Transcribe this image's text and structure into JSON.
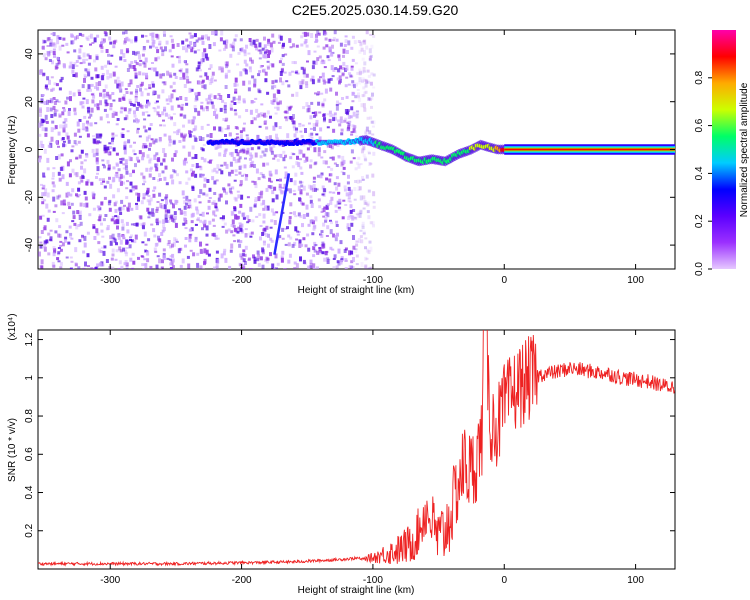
{
  "title": "C2E5.2025.030.14.59.G20",
  "chart_data": [
    {
      "type": "heatmap",
      "title": "",
      "xlabel": "Height of straight line (km)",
      "ylabel": "Frequency (Hz)",
      "xlim": [
        -355,
        130
      ],
      "ylim": [
        -50,
        50
      ],
      "xticks": [
        -300,
        -200,
        -100,
        0,
        100
      ],
      "yticks": [
        -40,
        -20,
        0,
        20,
        40
      ],
      "colorbar": {
        "label": "Normalized spectral amplitude",
        "range": [
          0,
          1
        ],
        "ticks": [
          "0.0",
          "0.2",
          "0.4",
          "0.6",
          "0.8"
        ],
        "colors": [
          "#e6c8ff",
          "#9b30ff",
          "#5b00ff",
          "#0000ff",
          "#00ccff",
          "#00ff66",
          "#ccff00",
          "#ffaa00",
          "#ff0000",
          "#ff00aa"
        ]
      },
      "noise_region_x": [
        -355,
        -100
      ],
      "signal_ridge": {
        "x": [
          -225,
          -200,
          -150,
          -120,
          -105,
          -95,
          -85,
          -75,
          -65,
          -55,
          -45,
          -35,
          -25,
          -18,
          -12,
          -5,
          0,
          130
        ],
        "freq_hz": [
          3,
          3,
          3,
          3,
          4,
          2,
          0,
          -3,
          -5,
          -4,
          -5,
          -2,
          0,
          2,
          1,
          0,
          0,
          0
        ],
        "amplitude": [
          0.35,
          0.38,
          0.38,
          0.42,
          0.45,
          0.52,
          0.55,
          0.55,
          0.58,
          0.6,
          0.6,
          0.55,
          0.62,
          0.62,
          0.65,
          0.75,
          0.9,
          0.9
        ]
      },
      "meteor_streak": {
        "x": [
          -175,
          -164
        ],
        "freq_hz": [
          -44,
          -10
        ]
      }
    },
    {
      "type": "line",
      "title": "",
      "xlabel": "Height of straight line (km)",
      "ylabel": "SNR (10 * v/v)",
      "y_multiplier": "(x10⁴)",
      "xlim": [
        -355,
        130
      ],
      "ylim": [
        0,
        1.25
      ],
      "xticks": [
        -300,
        -200,
        -100,
        0,
        100
      ],
      "yticks": [
        0.2,
        0.4,
        0.6,
        0.8,
        1.0,
        1.2
      ],
      "color": "#ee2222",
      "series": [
        {
          "x": [
            -355,
            -300,
            -250,
            -200,
            -160,
            -130,
            -110,
            -100,
            -90,
            -80,
            -70,
            -65,
            -60,
            -55,
            -50,
            -45,
            -40,
            -35,
            -30,
            -25,
            -20,
            -17,
            -15,
            -10,
            -5,
            0,
            5,
            10,
            20,
            30,
            40,
            50,
            60,
            70,
            80,
            90,
            100,
            110,
            120,
            130
          ],
          "y": [
            0.02,
            0.02,
            0.02,
            0.025,
            0.03,
            0.04,
            0.05,
            0.06,
            0.08,
            0.1,
            0.14,
            0.2,
            0.3,
            0.25,
            0.15,
            0.2,
            0.3,
            0.45,
            0.55,
            0.5,
            0.6,
            0.7,
            1.25,
            0.75,
            0.75,
            0.85,
            0.9,
            0.95,
            1.0,
            1.02,
            1.03,
            1.05,
            1.04,
            1.03,
            1.02,
            1.0,
            0.99,
            0.98,
            0.96,
            0.95
          ]
        }
      ]
    }
  ]
}
